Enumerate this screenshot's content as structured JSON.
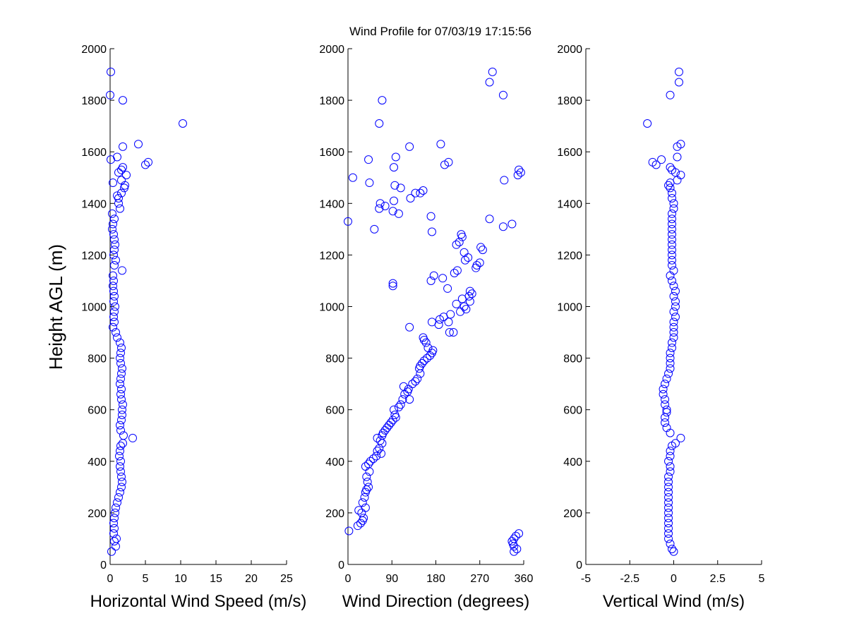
{
  "chart_data": [
    {
      "type": "scatter",
      "title": "Wind Profile for  07/03/19 17:15:56",
      "xlabel": "Horizontal Wind Speed (m/s)",
      "ylabel": "Height AGL (m)",
      "xlim": [
        0,
        25
      ],
      "ylim": [
        0,
        2000
      ],
      "xticks": [
        0,
        5,
        10,
        15,
        20,
        25
      ],
      "xtick_labels": [
        "0",
        "5",
        "10",
        "15",
        "20",
        "25"
      ],
      "yticks": [
        0,
        200,
        400,
        600,
        800,
        1000,
        1200,
        1400,
        1600,
        1800,
        2000
      ],
      "ytick_labels": [
        "0",
        "200",
        "400",
        "600",
        "800",
        "1000",
        "1200",
        "1400",
        "1600",
        "1800",
        "2000"
      ],
      "grid": false,
      "marker_color": "#0000ff",
      "points": [
        [
          0.2,
          50
        ],
        [
          0.8,
          70
        ],
        [
          0.6,
          90
        ],
        [
          0.9,
          100
        ],
        [
          0.5,
          120
        ],
        [
          0.6,
          140
        ],
        [
          0.5,
          160
        ],
        [
          0.6,
          180
        ],
        [
          0.7,
          200
        ],
        [
          0.8,
          220
        ],
        [
          1.0,
          240
        ],
        [
          1.2,
          260
        ],
        [
          1.4,
          280
        ],
        [
          1.6,
          300
        ],
        [
          1.7,
          320
        ],
        [
          1.6,
          340
        ],
        [
          1.5,
          360
        ],
        [
          1.4,
          380
        ],
        [
          1.5,
          400
        ],
        [
          1.3,
          420
        ],
        [
          1.4,
          440
        ],
        [
          1.5,
          460
        ],
        [
          1.8,
          470
        ],
        [
          3.2,
          490
        ],
        [
          1.9,
          500
        ],
        [
          1.5,
          520
        ],
        [
          1.4,
          540
        ],
        [
          1.6,
          560
        ],
        [
          1.7,
          580
        ],
        [
          1.7,
          600
        ],
        [
          1.8,
          620
        ],
        [
          1.6,
          640
        ],
        [
          1.5,
          660
        ],
        [
          1.6,
          680
        ],
        [
          1.4,
          700
        ],
        [
          1.5,
          720
        ],
        [
          1.6,
          740
        ],
        [
          1.7,
          760
        ],
        [
          1.5,
          780
        ],
        [
          1.4,
          800
        ],
        [
          1.5,
          820
        ],
        [
          1.6,
          840
        ],
        [
          1.4,
          860
        ],
        [
          1.0,
          880
        ],
        [
          0.8,
          900
        ],
        [
          0.4,
          920
        ],
        [
          0.6,
          940
        ],
        [
          0.5,
          960
        ],
        [
          0.6,
          980
        ],
        [
          0.7,
          1000
        ],
        [
          0.5,
          1020
        ],
        [
          0.6,
          1040
        ],
        [
          0.5,
          1060
        ],
        [
          0.4,
          1080
        ],
        [
          0.5,
          1100
        ],
        [
          0.4,
          1120
        ],
        [
          1.7,
          1140
        ],
        [
          0.6,
          1160
        ],
        [
          0.8,
          1180
        ],
        [
          0.5,
          1200
        ],
        [
          0.6,
          1220
        ],
        [
          0.7,
          1240
        ],
        [
          0.6,
          1260
        ],
        [
          0.5,
          1280
        ],
        [
          0.3,
          1300
        ],
        [
          0.4,
          1320
        ],
        [
          0.6,
          1340
        ],
        [
          0.3,
          1360
        ],
        [
          1.4,
          1380
        ],
        [
          1.2,
          1400
        ],
        [
          1.2,
          1420
        ],
        [
          1.0,
          1430
        ],
        [
          1.6,
          1440
        ],
        [
          2.0,
          1460
        ],
        [
          2.1,
          1470
        ],
        [
          0.4,
          1480
        ],
        [
          1.6,
          1490
        ],
        [
          2.3,
          1510
        ],
        [
          1.2,
          1520
        ],
        [
          1.6,
          1530
        ],
        [
          1.8,
          1540
        ],
        [
          5.0,
          1550
        ],
        [
          5.4,
          1560
        ],
        [
          0.1,
          1570
        ],
        [
          1.0,
          1580
        ],
        [
          1.8,
          1620
        ],
        [
          4.0,
          1630
        ],
        [
          10.3,
          1710
        ],
        [
          1.8,
          1800
        ],
        [
          0.0,
          1820
        ],
        [
          0.1,
          1910
        ]
      ]
    },
    {
      "type": "scatter",
      "xlabel": "Wind Direction (degrees)",
      "ylabel": "",
      "xlim": [
        0,
        360
      ],
      "ylim": [
        0,
        2000
      ],
      "xticks": [
        0,
        90,
        180,
        270,
        360
      ],
      "xtick_labels": [
        "0",
        "90",
        "180",
        "270",
        "360"
      ],
      "yticks": [
        0,
        200,
        400,
        600,
        800,
        1000,
        1200,
        1400,
        1600,
        1800,
        2000
      ],
      "ytick_labels": [
        "0",
        "200",
        "400",
        "600",
        "800",
        "1000",
        "1200",
        "1400",
        "1600",
        "1800",
        "2000"
      ],
      "grid": false,
      "marker_color": "#0000ff",
      "points": [
        [
          340,
          50
        ],
        [
          346,
          60
        ],
        [
          340,
          70
        ],
        [
          338,
          80
        ],
        [
          336,
          90
        ],
        [
          340,
          100
        ],
        [
          344,
          110
        ],
        [
          350,
          120
        ],
        [
          2,
          130
        ],
        [
          20,
          150
        ],
        [
          26,
          160
        ],
        [
          30,
          170
        ],
        [
          32,
          180
        ],
        [
          28,
          200
        ],
        [
          22,
          210
        ],
        [
          36,
          220
        ],
        [
          30,
          240
        ],
        [
          34,
          260
        ],
        [
          36,
          280
        ],
        [
          38,
          290
        ],
        [
          42,
          300
        ],
        [
          40,
          320
        ],
        [
          38,
          340
        ],
        [
          44,
          360
        ],
        [
          36,
          380
        ],
        [
          42,
          390
        ],
        [
          46,
          400
        ],
        [
          52,
          410
        ],
        [
          58,
          420
        ],
        [
          68,
          430
        ],
        [
          60,
          440
        ],
        [
          64,
          450
        ],
        [
          70,
          470
        ],
        [
          66,
          480
        ],
        [
          60,
          490
        ],
        [
          70,
          500
        ],
        [
          72,
          510
        ],
        [
          76,
          520
        ],
        [
          80,
          530
        ],
        [
          84,
          540
        ],
        [
          88,
          550
        ],
        [
          92,
          560
        ],
        [
          98,
          570
        ],
        [
          96,
          580
        ],
        [
          94,
          600
        ],
        [
          104,
          610
        ],
        [
          108,
          620
        ],
        [
          112,
          640
        ],
        [
          126,
          640
        ],
        [
          116,
          660
        ],
        [
          122,
          670
        ],
        [
          124,
          680
        ],
        [
          114,
          690
        ],
        [
          132,
          700
        ],
        [
          138,
          710
        ],
        [
          142,
          720
        ],
        [
          148,
          740
        ],
        [
          146,
          760
        ],
        [
          148,
          770
        ],
        [
          152,
          780
        ],
        [
          156,
          790
        ],
        [
          162,
          800
        ],
        [
          168,
          810
        ],
        [
          172,
          820
        ],
        [
          174,
          830
        ],
        [
          164,
          840
        ],
        [
          160,
          860
        ],
        [
          156,
          870
        ],
        [
          154,
          880
        ],
        [
          208,
          900
        ],
        [
          216,
          900
        ],
        [
          126,
          920
        ],
        [
          186,
          930
        ],
        [
          206,
          940
        ],
        [
          172,
          940
        ],
        [
          188,
          950
        ],
        [
          196,
          960
        ],
        [
          210,
          970
        ],
        [
          230,
          980
        ],
        [
          242,
          990
        ],
        [
          238,
          1000
        ],
        [
          222,
          1010
        ],
        [
          250,
          1020
        ],
        [
          234,
          1030
        ],
        [
          248,
          1040
        ],
        [
          254,
          1050
        ],
        [
          250,
          1060
        ],
        [
          204,
          1070
        ],
        [
          92,
          1080
        ],
        [
          92,
          1090
        ],
        [
          170,
          1100
        ],
        [
          194,
          1110
        ],
        [
          176,
          1120
        ],
        [
          218,
          1130
        ],
        [
          224,
          1140
        ],
        [
          262,
          1150
        ],
        [
          264,
          1160
        ],
        [
          270,
          1170
        ],
        [
          240,
          1180
        ],
        [
          246,
          1190
        ],
        [
          238,
          1210
        ],
        [
          276,
          1220
        ],
        [
          272,
          1230
        ],
        [
          222,
          1240
        ],
        [
          228,
          1250
        ],
        [
          234,
          1270
        ],
        [
          232,
          1280
        ],
        [
          172,
          1290
        ],
        [
          54,
          1300
        ],
        [
          318,
          1310
        ],
        [
          336,
          1320
        ],
        [
          0,
          1330
        ],
        [
          290,
          1340
        ],
        [
          170,
          1350
        ],
        [
          104,
          1360
        ],
        [
          64,
          1380
        ],
        [
          92,
          1370
        ],
        [
          76,
          1390
        ],
        [
          94,
          1410
        ],
        [
          66,
          1400
        ],
        [
          128,
          1420
        ],
        [
          138,
          1440
        ],
        [
          148,
          1440
        ],
        [
          154,
          1450
        ],
        [
          108,
          1460
        ],
        [
          96,
          1470
        ],
        [
          44,
          1480
        ],
        [
          320,
          1490
        ],
        [
          10,
          1500
        ],
        [
          348,
          1510
        ],
        [
          354,
          1520
        ],
        [
          350,
          1530
        ],
        [
          94,
          1540
        ],
        [
          198,
          1550
        ],
        [
          206,
          1560
        ],
        [
          42,
          1570
        ],
        [
          98,
          1580
        ],
        [
          126,
          1620
        ],
        [
          190,
          1630
        ],
        [
          64,
          1710
        ],
        [
          70,
          1800
        ],
        [
          318,
          1820
        ],
        [
          290,
          1870
        ],
        [
          296,
          1910
        ]
      ]
    },
    {
      "type": "scatter",
      "xlabel": "Vertical Wind (m/s)",
      "ylabel": "",
      "xlim": [
        -5,
        5
      ],
      "ylim": [
        0,
        2000
      ],
      "xticks": [
        -5,
        -2.5,
        0,
        2.5,
        5
      ],
      "xtick_labels": [
        "-5",
        "-2.5",
        "0",
        "2.5",
        "5"
      ],
      "yticks": [
        0,
        200,
        400,
        600,
        800,
        1000,
        1200,
        1400,
        1600,
        1800,
        2000
      ],
      "ytick_labels": [
        "0",
        "200",
        "400",
        "600",
        "800",
        "1000",
        "1200",
        "1400",
        "1600",
        "1800",
        "2000"
      ],
      "grid": false,
      "marker_color": "#0000ff",
      "points": [
        [
          0.0,
          50
        ],
        [
          -0.1,
          60
        ],
        [
          -0.2,
          80
        ],
        [
          -0.3,
          100
        ],
        [
          -0.3,
          120
        ],
        [
          -0.3,
          140
        ],
        [
          -0.3,
          160
        ],
        [
          -0.3,
          180
        ],
        [
          -0.3,
          200
        ],
        [
          -0.3,
          220
        ],
        [
          -0.3,
          240
        ],
        [
          -0.3,
          260
        ],
        [
          -0.3,
          280
        ],
        [
          -0.3,
          300
        ],
        [
          -0.3,
          320
        ],
        [
          -0.3,
          340
        ],
        [
          -0.2,
          360
        ],
        [
          -0.2,
          380
        ],
        [
          -0.3,
          400
        ],
        [
          -0.2,
          420
        ],
        [
          -0.2,
          440
        ],
        [
          -0.1,
          460
        ],
        [
          0.1,
          470
        ],
        [
          0.4,
          490
        ],
        [
          -0.2,
          510
        ],
        [
          -0.4,
          530
        ],
        [
          -0.5,
          550
        ],
        [
          -0.5,
          570
        ],
        [
          -0.4,
          590
        ],
        [
          -0.4,
          600
        ],
        [
          -0.5,
          620
        ],
        [
          -0.5,
          640
        ],
        [
          -0.6,
          660
        ],
        [
          -0.6,
          680
        ],
        [
          -0.5,
          700
        ],
        [
          -0.4,
          720
        ],
        [
          -0.3,
          740
        ],
        [
          -0.2,
          760
        ],
        [
          -0.2,
          780
        ],
        [
          -0.2,
          800
        ],
        [
          -0.2,
          820
        ],
        [
          -0.1,
          840
        ],
        [
          -0.1,
          860
        ],
        [
          0.0,
          880
        ],
        [
          0.0,
          900
        ],
        [
          0.0,
          920
        ],
        [
          0.0,
          940
        ],
        [
          0.1,
          960
        ],
        [
          0.0,
          980
        ],
        [
          0.1,
          1000
        ],
        [
          0.1,
          1020
        ],
        [
          0.0,
          1040
        ],
        [
          0.1,
          1060
        ],
        [
          0.0,
          1080
        ],
        [
          -0.1,
          1100
        ],
        [
          -0.2,
          1120
        ],
        [
          0.0,
          1140
        ],
        [
          -0.1,
          1160
        ],
        [
          -0.1,
          1180
        ],
        [
          -0.1,
          1200
        ],
        [
          -0.1,
          1220
        ],
        [
          -0.1,
          1240
        ],
        [
          -0.1,
          1260
        ],
        [
          -0.1,
          1280
        ],
        [
          -0.1,
          1300
        ],
        [
          -0.1,
          1320
        ],
        [
          -0.1,
          1340
        ],
        [
          -0.1,
          1360
        ],
        [
          0.0,
          1380
        ],
        [
          0.0,
          1400
        ],
        [
          -0.1,
          1420
        ],
        [
          -0.1,
          1440
        ],
        [
          -0.2,
          1460
        ],
        [
          -0.3,
          1470
        ],
        [
          -0.2,
          1480
        ],
        [
          0.2,
          1490
        ],
        [
          0.4,
          1510
        ],
        [
          0.1,
          1520
        ],
        [
          -0.1,
          1530
        ],
        [
          -0.2,
          1540
        ],
        [
          -1.0,
          1550
        ],
        [
          -1.2,
          1560
        ],
        [
          -0.7,
          1570
        ],
        [
          0.2,
          1580
        ],
        [
          0.2,
          1620
        ],
        [
          0.4,
          1630
        ],
        [
          -1.5,
          1710
        ],
        [
          -0.2,
          1820
        ],
        [
          0.3,
          1870
        ],
        [
          0.3,
          1910
        ]
      ]
    }
  ]
}
